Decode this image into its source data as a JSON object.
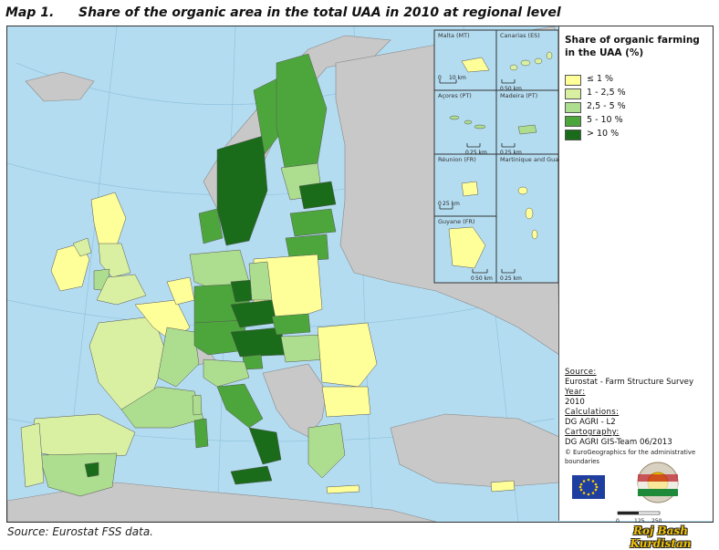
{
  "heading": {
    "label": "Map 1.",
    "title": "Share of the organic area in the total UAA in 2010 at regional level"
  },
  "legend": {
    "title": "Share of organic farming in the UAA (%)",
    "classes": [
      {
        "label": "≤ 1 %",
        "color": "#ffff99"
      },
      {
        "label": "1 - 2,5 %",
        "color": "#d9f0a3"
      },
      {
        "label": "2,5 - 5 %",
        "color": "#addd8e"
      },
      {
        "label": "5 - 10 %",
        "color": "#4da63c"
      },
      {
        "label": "> 10 %",
        "color": "#1a6b1a"
      }
    ]
  },
  "insets": [
    {
      "name": "Malta (MT)",
      "scale": "10 km"
    },
    {
      "name": "Canarias (ES)",
      "scale": "50 km"
    },
    {
      "name": "Açores (PT)",
      "scale": "25 km"
    },
    {
      "name": "Madeira (PT)",
      "scale": "25 km"
    },
    {
      "name": "Réunion (FR)",
      "scale": "25 km"
    },
    {
      "name": "Martinique and Guadeloupe(FR)",
      "scale": "25 km"
    },
    {
      "name": "Guyane (FR)",
      "scale": "50 km"
    }
  ],
  "inset_scale_zero": "0",
  "metadata": {
    "source_heading": "Source:",
    "source_value": "Eurostat - Farm Structure Survey",
    "year_heading": "Year:",
    "year_value": "2010",
    "calc_heading": "Calculations:",
    "calc_value": "DG AGRI - L2",
    "carto_heading": "Cartography:",
    "carto_value": "DG AGRI GIS-Team 06/2013",
    "copyright": "© EuroGeographics for the administrative boundaries"
  },
  "scalebar": {
    "labels": [
      "0",
      "125",
      "250"
    ]
  },
  "footer_source": "Source: Eurostat FSS data.",
  "watermark": "Roj Bash Kurdistan",
  "colors": {
    "sea": "#b4dcf0",
    "non_eu_land": "#c8c8c8",
    "border": "#555555"
  }
}
